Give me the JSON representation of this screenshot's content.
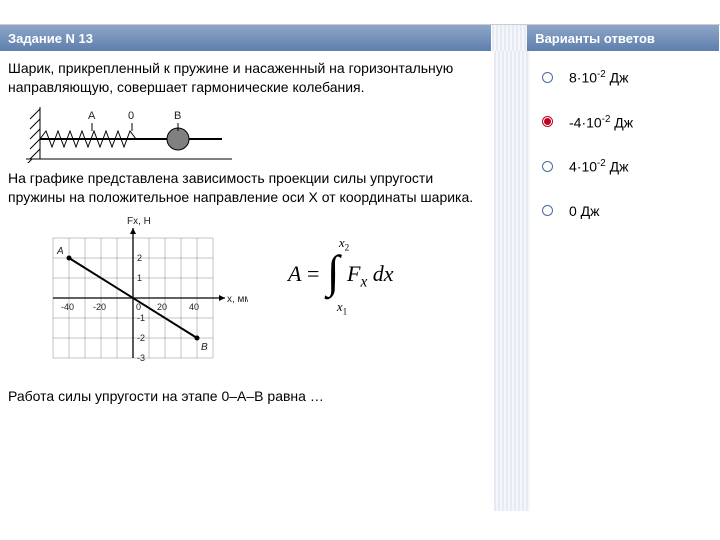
{
  "header": {
    "left": "Задание N 13",
    "right": "Варианты ответов"
  },
  "problem": {
    "p1": "Шарик, прикрепленный к пружине и насаженный на горизонтальную направляющую, совершает гармонические колебания.",
    "p2": "На графике представлена зависимость проекции силы упругости пружины на положительное направление оси X от координаты шарика.",
    "p3": "Работа силы упругости на этапе 0–A–B равна …"
  },
  "spring_diagram": {
    "labels": {
      "A": "A",
      "O": "0",
      "B": "B"
    }
  },
  "formula": {
    "lhs": "A",
    "int_var": "F",
    "int_sub": "x",
    "dx": "dx",
    "upper": "x",
    "upper_sub": "2",
    "lower": "x",
    "lower_sub": "1"
  },
  "graph": {
    "y_axis_label": "Fx, Н",
    "x_axis_label": "x, мм",
    "x_ticks": [
      "-40",
      "-20",
      "0",
      "20",
      "40"
    ],
    "y_ticks_pos": [
      "1",
      "2"
    ],
    "y_ticks_neg": [
      "-1",
      "-2",
      "-3"
    ],
    "point_A": "A",
    "point_B": "B",
    "line": {
      "x1_mm": -40,
      "y1_n": 2,
      "x2_mm": 40,
      "y2_n": -2
    },
    "colors": {
      "grid": "#888",
      "axis": "#000",
      "line": "#000",
      "bg": "#fff"
    }
  },
  "answers": [
    {
      "label_pre": "8·10",
      "exp": "-2",
      "unit": " Дж",
      "selected": false
    },
    {
      "label_pre": "-4·10",
      "exp": "-2",
      "unit": " Дж",
      "selected": true
    },
    {
      "label_pre": "4·10",
      "exp": "-2",
      "unit": " Дж",
      "selected": false
    },
    {
      "label_pre": "0 Дж",
      "exp": "",
      "unit": "",
      "selected": false
    }
  ]
}
